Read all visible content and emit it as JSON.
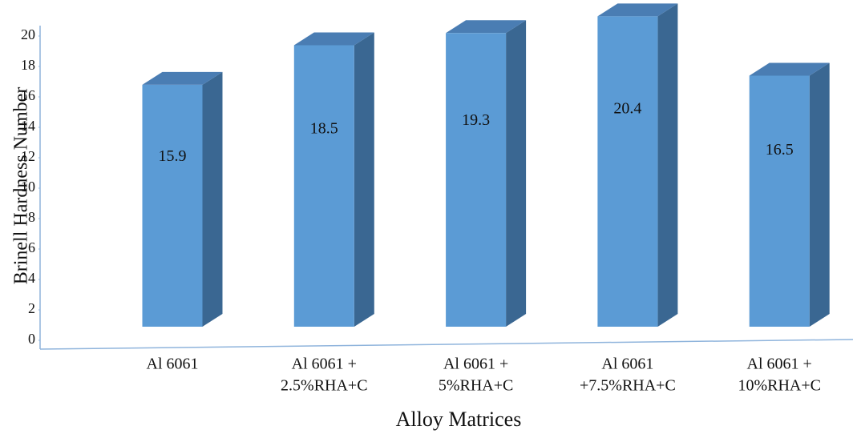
{
  "chart_data": {
    "type": "bar3d",
    "title_x": "Alloy Matrices",
    "title_y": "Brinell Hardness Number",
    "categories": [
      [
        "Al 6061"
      ],
      [
        "Al 6061 +",
        "2.5%RHA+C"
      ],
      [
        "Al 6061 +",
        "5%RHA+C"
      ],
      [
        "Al 6061",
        "+7.5%RHA+C"
      ],
      [
        "Al 6061 +",
        "10%RHA+C"
      ]
    ],
    "values": [
      15.9,
      18.5,
      19.3,
      20.4,
      16.5
    ],
    "color": "#5b9bd5",
    "ylim": [
      0,
      20
    ],
    "yticks": [
      0,
      2,
      4,
      6,
      8,
      10,
      12,
      14,
      16,
      18,
      20
    ]
  }
}
